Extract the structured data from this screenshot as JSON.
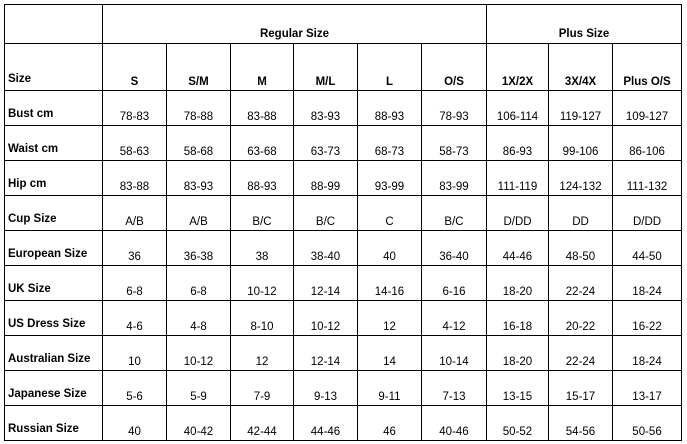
{
  "groups": {
    "regular": "Regular Size",
    "plus": "Plus Size"
  },
  "header": [
    "Size",
    "S",
    "S/M",
    "M",
    "M/L",
    "L",
    "O/S",
    "1X/2X",
    "3X/4X",
    "Plus O/S"
  ],
  "rows": [
    [
      "Bust cm",
      "78-83",
      "78-88",
      "83-88",
      "83-93",
      "88-93",
      "78-93",
      "106-114",
      "119-127",
      "109-127"
    ],
    [
      "Waist cm",
      "58-63",
      "58-68",
      "63-68",
      "63-73",
      "68-73",
      "58-73",
      "86-93",
      "99-106",
      "86-106"
    ],
    [
      "Hip cm",
      "83-88",
      "83-93",
      "88-93",
      "88-99",
      "93-99",
      "83-99",
      "111-119",
      "124-132",
      "111-132"
    ],
    [
      "Cup Size",
      "A/B",
      "A/B",
      "B/C",
      "B/C",
      "C",
      "B/C",
      "D/DD",
      "DD",
      "D/DD"
    ],
    [
      "European Size",
      "36",
      "36-38",
      "38",
      "38-40",
      "40",
      "36-40",
      "44-46",
      "48-50",
      "44-50"
    ],
    [
      "UK Size",
      "6-8",
      "6-8",
      "10-12",
      "12-14",
      "14-16",
      "6-16",
      "18-20",
      "22-24",
      "18-24"
    ],
    [
      "US Dress Size",
      "4-6",
      "4-8",
      "8-10",
      "10-12",
      "12",
      "4-12",
      "16-18",
      "20-22",
      "16-22"
    ],
    [
      "Australian Size",
      "10",
      "10-12",
      "12",
      "12-14",
      "14",
      "10-14",
      "18-20",
      "22-24",
      "18-24"
    ],
    [
      "Japanese Size",
      "5-6",
      "5-9",
      "7-9",
      "9-13",
      "9-11",
      "7-13",
      "13-15",
      "15-17",
      "13-17"
    ],
    [
      "Russian Size",
      "40",
      "40-42",
      "42-44",
      "44-46",
      "46",
      "40-46",
      "50-52",
      "54-56",
      "50-56"
    ]
  ]
}
